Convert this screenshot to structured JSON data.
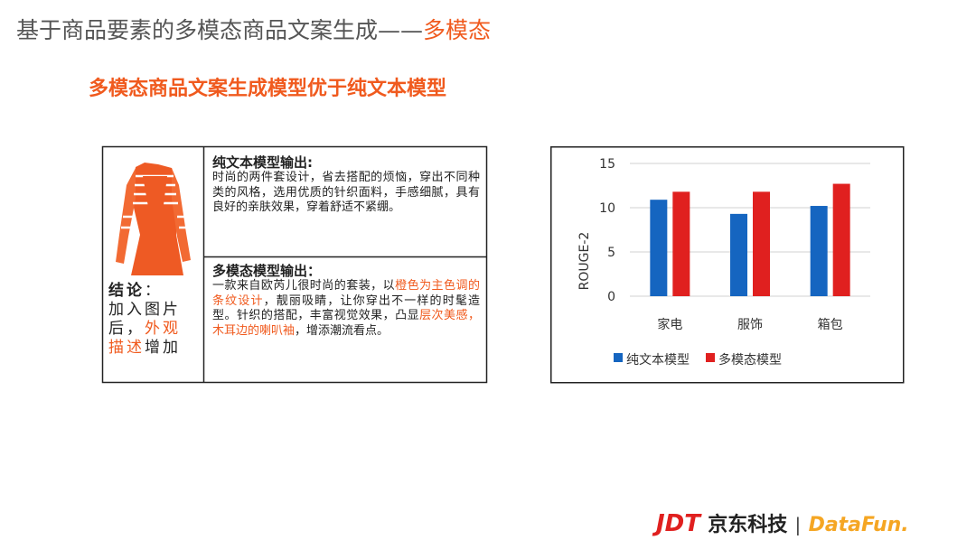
{
  "title": {
    "main": "基于商品要素的多模态商品文案生成——",
    "highlight": "多模态"
  },
  "subtitle": "多模态商品文案生成模型优于纯文本模型",
  "table": {
    "conclusion": {
      "label": "结论",
      "colon": "：",
      "segments": [
        {
          "text": "加入图片后，",
          "highlight": false
        },
        {
          "text": "外观描述",
          "highlight": true
        },
        {
          "text": "增加",
          "highlight": false
        }
      ]
    },
    "text_only": {
      "heading": "纯文本模型输出:",
      "segments": [
        {
          "text": "时尚的两件套设计，省去搭配的烦恼，穿出不同种类的风格，选用优质的针织面料，手感细腻，具有良好的亲肤效果，穿着舒适不紧绷。",
          "highlight": false
        }
      ]
    },
    "multimodal": {
      "heading": "多模态模型输出：",
      "segments": [
        {
          "text": "一款来自欧芮儿很时尚的套装，以",
          "highlight": false
        },
        {
          "text": "橙色为主色调的条纹设计",
          "highlight": true
        },
        {
          "text": "，靓丽吸睛，让你穿出不一样的时髦造型。针织的搭配，丰富视觉效果，凸显",
          "highlight": false
        },
        {
          "text": "层次美感，木耳边的喇叭袖",
          "highlight": true
        },
        {
          "text": "，增添潮流看点。",
          "highlight": false
        }
      ]
    }
  },
  "chart_data": {
    "type": "bar",
    "ylabel": "ROUGE-2",
    "categories": [
      "家电",
      "服饰",
      "箱包"
    ],
    "series": [
      {
        "name": "纯文本模型",
        "color": "#1565c0",
        "values": [
          10.9,
          9.3,
          10.2
        ]
      },
      {
        "name": "多模态模型",
        "color": "#e0201f",
        "values": [
          11.8,
          11.8,
          12.7
        ]
      }
    ],
    "ylim": [
      0,
      15
    ],
    "yticks": [
      0,
      5,
      10,
      15
    ],
    "grid": true,
    "legend": "bottom"
  },
  "footer": {
    "brand": "JDT",
    "brand_name": "京东科技",
    "separator": "|",
    "partner": "DataFun."
  }
}
